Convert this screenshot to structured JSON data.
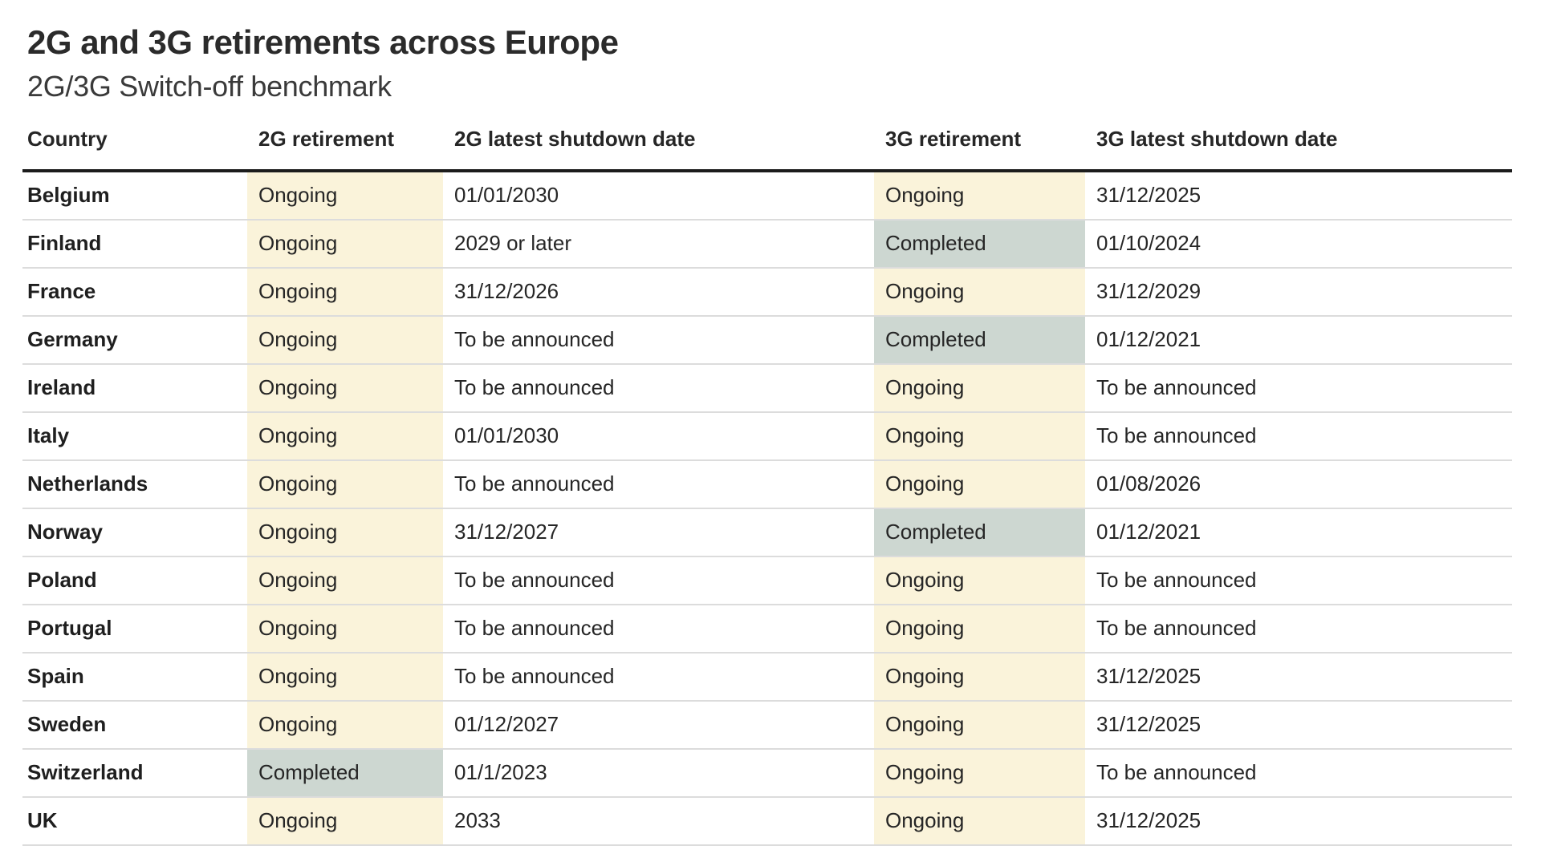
{
  "header": {
    "title": "2G and 3G retirements across Europe",
    "subtitle": "2G/3G Switch-off benchmark"
  },
  "chart_data": {
    "type": "table",
    "title": "2G and 3G retirements across Europe",
    "subtitle": "2G/3G Switch-off benchmark",
    "columns": [
      {
        "key": "country",
        "label": "Country"
      },
      {
        "key": "g2-retirement",
        "label": "2G retirement"
      },
      {
        "key": "g2-latest-shutdown-date",
        "label": "2G latest shutdown date"
      },
      {
        "key": "g3-retirement",
        "label": "3G retirement"
      },
      {
        "key": "g3-latest-shutdown-date",
        "label": "3G latest shutdown date"
      }
    ],
    "status_column_keys": [
      "g2-retirement",
      "g3-retirement"
    ],
    "rows": [
      [
        "Belgium",
        "Ongoing",
        "01/01/2030",
        "Ongoing",
        "31/12/2025"
      ],
      [
        "Finland",
        "Ongoing",
        "2029 or later",
        "Completed",
        "01/10/2024"
      ],
      [
        "France",
        "Ongoing",
        "31/12/2026",
        "Ongoing",
        "31/12/2029"
      ],
      [
        "Germany",
        "Ongoing",
        "To be announced",
        "Completed",
        "01/12/2021"
      ],
      [
        "Ireland",
        "Ongoing",
        "To be announced",
        "Ongoing",
        "To be announced"
      ],
      [
        "Italy",
        "Ongoing",
        "01/01/2030",
        "Ongoing",
        "To be announced"
      ],
      [
        "Netherlands",
        "Ongoing",
        "To be announced",
        "Ongoing",
        "01/08/2026"
      ],
      [
        "Norway",
        "Ongoing",
        "31/12/2027",
        "Completed",
        "01/12/2021"
      ],
      [
        "Poland",
        "Ongoing",
        "To be announced",
        "Ongoing",
        "To be announced"
      ],
      [
        "Portugal",
        "Ongoing",
        "To be announced",
        "Ongoing",
        "To be announced"
      ],
      [
        "Spain",
        "Ongoing",
        "To be announced",
        "Ongoing",
        "31/12/2025"
      ],
      [
        "Sweden",
        "Ongoing",
        "01/12/2027",
        "Ongoing",
        "31/12/2025"
      ],
      [
        "Switzerland",
        "Completed",
        "01/1/2023",
        "Ongoing",
        "To be announced"
      ],
      [
        "UK",
        "Ongoing",
        "2033",
        "Ongoing",
        "31/12/2025"
      ]
    ],
    "legend": {
      "ongoing_bg": "#faf3da",
      "completed_bg": "#cdd7d1"
    }
  }
}
